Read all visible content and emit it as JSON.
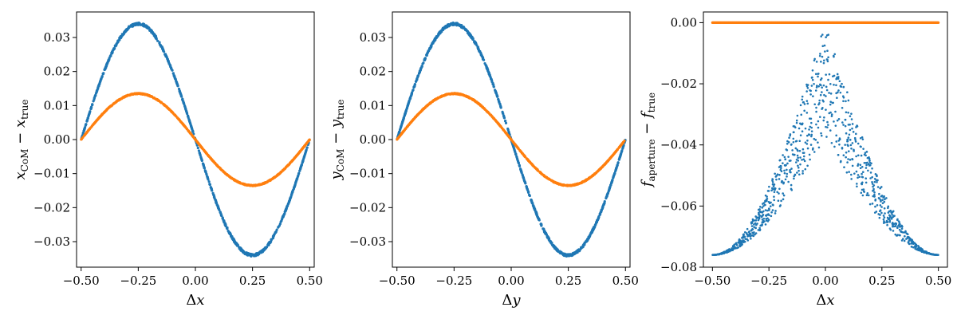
{
  "chart_data": [
    {
      "type": "scatter",
      "xlabel": "Δx",
      "ylabel": {
        "main": "x",
        "sub": "CoM",
        "minus": " − ",
        "main2": "x",
        "sub2": "true"
      },
      "xlim": [
        -0.52,
        0.52
      ],
      "ylim": [
        -0.0375,
        0.0375
      ],
      "xticks": [
        "−0.50",
        "−0.25",
        "0.00",
        "0.25",
        "0.50"
      ],
      "xtick_values": [
        -0.5,
        -0.25,
        0,
        0.25,
        0.5
      ],
      "yticks": [
        "−0.03",
        "−0.02",
        "−0.01",
        "0.00",
        "0.01",
        "0.02",
        "0.03"
      ],
      "ytick_values": [
        -0.03,
        -0.02,
        -0.01,
        0,
        0.01,
        0.02,
        0.03
      ],
      "series": [
        {
          "color": "#1f77b4",
          "model": "sine",
          "amplitude": 0.034,
          "x_range": [
            -0.5,
            0.5
          ],
          "points": 900
        },
        {
          "color": "#ff7f0e",
          "model": "sine",
          "amplitude": 0.0135,
          "x_range": [
            -0.5,
            0.5
          ],
          "points": 900
        }
      ]
    },
    {
      "type": "scatter",
      "xlabel": "Δy",
      "ylabel": {
        "main": "y",
        "sub": "CoM",
        "minus": " − ",
        "main2": "y",
        "sub2": "true"
      },
      "xlim": [
        -0.52,
        0.52
      ],
      "ylim": [
        -0.0375,
        0.0375
      ],
      "xticks": [
        "−0.50",
        "−0.25",
        "0.00",
        "0.25",
        "0.50"
      ],
      "xtick_values": [
        -0.5,
        -0.25,
        0,
        0.25,
        0.5
      ],
      "yticks": [
        "−0.03",
        "−0.02",
        "−0.01",
        "0.00",
        "0.01",
        "0.02",
        "0.03"
      ],
      "ytick_values": [
        -0.03,
        -0.02,
        -0.01,
        0,
        0.01,
        0.02,
        0.03
      ],
      "series": [
        {
          "color": "#1f77b4",
          "model": "sine",
          "amplitude": 0.034,
          "x_range": [
            -0.5,
            0.5
          ],
          "points": 900
        },
        {
          "color": "#ff7f0e",
          "model": "sine",
          "amplitude": 0.0135,
          "x_range": [
            -0.5,
            0.5
          ],
          "points": 900
        }
      ]
    },
    {
      "type": "scatter",
      "xlabel": "Δx",
      "ylabel": {
        "main": "f",
        "sub": "aperture",
        "minus": " − ",
        "main2": "f",
        "sub2": "true"
      },
      "xlim": [
        -0.54,
        0.54
      ],
      "ylim": [
        -0.08,
        0.0035
      ],
      "xticks": [
        "−0.50",
        "−0.25",
        "0.00",
        "0.25",
        "0.50"
      ],
      "xtick_values": [
        -0.5,
        -0.25,
        0,
        0.25,
        0.5
      ],
      "yticks": [
        "−0.08",
        "−0.06",
        "−0.04",
        "−0.02",
        "0.00"
      ],
      "ytick_values": [
        -0.08,
        -0.06,
        -0.04,
        -0.02,
        0
      ],
      "series": [
        {
          "color": "#1f77b4",
          "model": "aperture_scatter",
          "upper_envelope": "-0.076*|sin(pi*x)|",
          "lower_envelope": "-0.038 - 0.038*|sin(pi*x)|",
          "x_range": [
            -0.5,
            0.5
          ],
          "points": 1000
        },
        {
          "color": "#ff7f0e",
          "model": "constant",
          "value": 0.0,
          "x_range": [
            -0.5,
            0.5
          ],
          "points": 400
        }
      ]
    }
  ]
}
